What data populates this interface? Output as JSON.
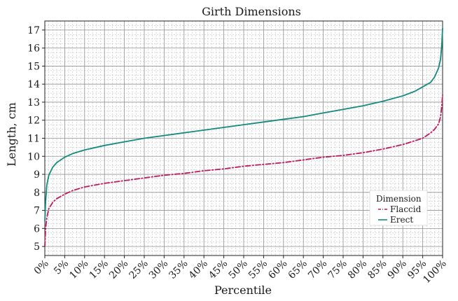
{
  "chart_data": {
    "type": "line",
    "title": "Girth Dimensions",
    "xlabel": "Percentile",
    "ylabel": "Length, cm",
    "xlim": [
      0,
      100
    ],
    "ylim": [
      4.5,
      17.5
    ],
    "x_ticks": [
      "0%",
      "5%",
      "10%",
      "15%",
      "20%",
      "25%",
      "30%",
      "35%",
      "40%",
      "45%",
      "50%",
      "55%",
      "60%",
      "65%",
      "70%",
      "75%",
      "80%",
      "85%",
      "90%",
      "95%",
      "100%"
    ],
    "y_ticks": [
      5,
      6,
      7,
      8,
      9,
      10,
      11,
      12,
      13,
      14,
      15,
      16,
      17
    ],
    "grid": true,
    "legend": {
      "title": "Dimension",
      "position": "bottom-right"
    },
    "series": [
      {
        "name": "Flaccid",
        "color": "#c2185b",
        "style": "dash-dot",
        "x": [
          0,
          0.2,
          0.5,
          1,
          2,
          3,
          5,
          7,
          10,
          15,
          20,
          25,
          30,
          35,
          40,
          45,
          50,
          55,
          60,
          65,
          70,
          75,
          80,
          85,
          90,
          95,
          97,
          98,
          99,
          99.5,
          99.8,
          100
        ],
        "values": [
          5.0,
          6.0,
          6.6,
          7.1,
          7.45,
          7.65,
          7.9,
          8.1,
          8.3,
          8.5,
          8.65,
          8.8,
          8.95,
          9.05,
          9.2,
          9.3,
          9.45,
          9.55,
          9.65,
          9.8,
          9.95,
          10.05,
          10.2,
          10.4,
          10.65,
          11.0,
          11.3,
          11.5,
          11.8,
          12.2,
          12.8,
          13.4
        ]
      },
      {
        "name": "Erect",
        "color": "#138a7e",
        "style": "solid",
        "x": [
          0,
          0.2,
          0.5,
          1,
          2,
          3,
          5,
          7,
          10,
          15,
          20,
          25,
          30,
          35,
          40,
          45,
          50,
          55,
          60,
          65,
          70,
          75,
          80,
          85,
          90,
          93,
          95,
          97,
          98,
          99,
          99.5,
          99.8,
          100
        ],
        "values": [
          6.4,
          7.5,
          8.4,
          8.95,
          9.4,
          9.65,
          9.95,
          10.15,
          10.35,
          10.6,
          10.8,
          11.0,
          11.15,
          11.3,
          11.45,
          11.6,
          11.75,
          11.9,
          12.05,
          12.2,
          12.4,
          12.6,
          12.8,
          13.05,
          13.35,
          13.6,
          13.85,
          14.1,
          14.4,
          14.9,
          15.4,
          16.2,
          17.1
        ]
      }
    ]
  }
}
